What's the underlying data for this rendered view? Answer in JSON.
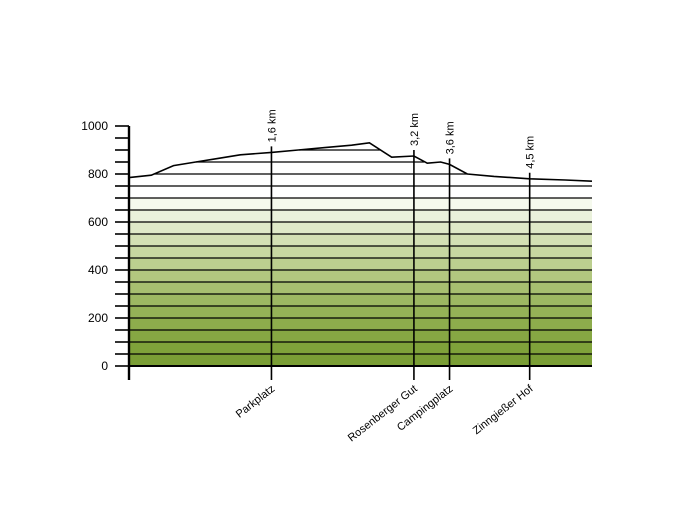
{
  "chart_data": {
    "type": "area",
    "title": "",
    "xlabel": "",
    "ylabel": "",
    "ylim": [
      0,
      1000
    ],
    "xlim": [
      0,
      5.2
    ],
    "y_ticks": [
      0,
      200,
      400,
      600,
      800,
      1000
    ],
    "y_tick_labels": [
      "0",
      "200",
      "400",
      "600",
      "800",
      "1000"
    ],
    "grid": true,
    "legend": "none",
    "elevation_profile": {
      "x": [
        0,
        0.25,
        0.5,
        0.75,
        1.0,
        1.25,
        1.6,
        1.9,
        2.2,
        2.5,
        2.7,
        2.95,
        3.2,
        3.35,
        3.5,
        3.6,
        3.8,
        4.1,
        4.5,
        4.9,
        5.2
      ],
      "y": [
        785,
        795,
        835,
        850,
        865,
        880,
        890,
        900,
        910,
        920,
        930,
        870,
        875,
        845,
        850,
        840,
        800,
        790,
        780,
        775,
        770
      ]
    },
    "markers": [
      {
        "x": 1.6,
        "distance": "1,6  km",
        "name": "Parkplatz"
      },
      {
        "x": 3.2,
        "distance": "3,2 km",
        "name": "Rosenberger Gut"
      },
      {
        "x": 3.6,
        "distance": "3,6 km",
        "name": "Campingplatz"
      },
      {
        "x": 4.5,
        "distance": "4,5 km",
        "name": "Zinngießer Hof"
      }
    ],
    "band_colors": [
      "#7a9e35",
      "#7fa23a",
      "#86a743",
      "#8dac4c",
      "#95b257",
      "#9db862",
      "#a7bf70",
      "#b2c77f",
      "#bccf8f",
      "#c7d7a1",
      "#d3e0b4",
      "#dfe9c8",
      "#eaf1db",
      "#f5f9ed",
      "#ffffff",
      "#ffffff",
      "#ffffff",
      "#ffffff",
      "#ffffff",
      "#ffffff"
    ]
  }
}
